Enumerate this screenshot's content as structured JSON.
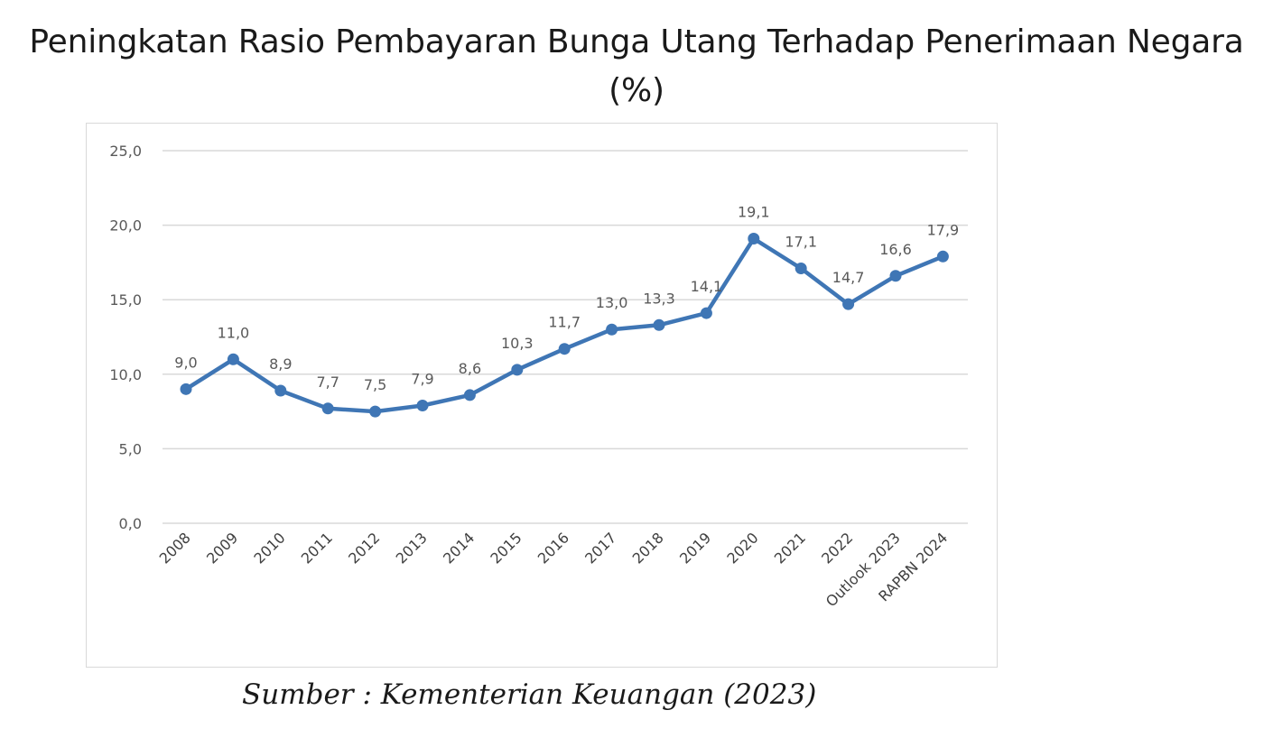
{
  "chart_data": {
    "type": "line",
    "title": "Peningkatan Rasio Pembayaran Bunga Utang Terhadap Penerimaan Negara",
    "subtitle": "(%)",
    "categories": [
      "2008",
      "2009",
      "2010",
      "2011",
      "2012",
      "2013",
      "2014",
      "2015",
      "2016",
      "2017",
      "2018",
      "2019",
      "2020",
      "2021",
      "2022",
      "Outlook 2023",
      "RAPBN 2024"
    ],
    "values": [
      9.0,
      11.0,
      8.9,
      7.7,
      7.5,
      7.9,
      8.6,
      10.3,
      11.7,
      13.0,
      13.3,
      14.1,
      19.1,
      17.1,
      14.7,
      16.6,
      17.9
    ],
    "value_labels": [
      "9,0",
      "11,0",
      "8,9",
      "7,7",
      "7,5",
      "7,9",
      "8,6",
      "10,3",
      "11,7",
      "13,0",
      "13,3",
      "14,1",
      "19,1",
      "17,1",
      "14,7",
      "16,6",
      "17,9"
    ],
    "y_ticks": [
      0,
      5,
      10,
      15,
      20,
      25
    ],
    "y_tick_labels": [
      "0,0",
      "5,0",
      "10,0",
      "15,0",
      "20,0",
      "25,0"
    ],
    "ylim": [
      0,
      25
    ],
    "xlabel": "",
    "ylabel": "",
    "grid": "horizontal",
    "legend": "none",
    "line_color": "#3f76b5"
  },
  "source": "Sumber : Kementerian Keuangan (2023)"
}
